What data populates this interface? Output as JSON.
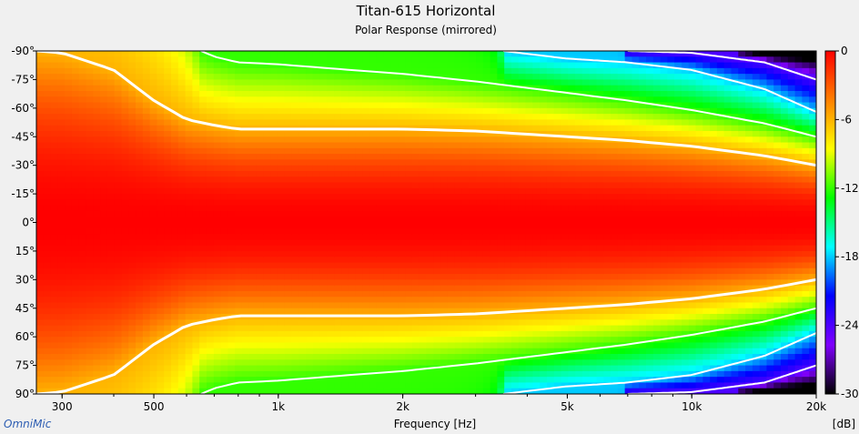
{
  "chart_data": {
    "type": "heatmap",
    "title": "Titan-615 Horizontal",
    "subtitle": "Polar Response (mirrored)",
    "xlabel": "Frequency [Hz]",
    "ylabel": "",
    "x_scale": "log",
    "xlim": [
      260,
      20000
    ],
    "x_ticks": [
      {
        "value": 300,
        "label": "300"
      },
      {
        "value": 500,
        "label": "500"
      },
      {
        "value": 1000,
        "label": "1k"
      },
      {
        "value": 2000,
        "label": "2k"
      },
      {
        "value": 5000,
        "label": "5k"
      },
      {
        "value": 10000,
        "label": "10k"
      },
      {
        "value": 20000,
        "label": "20k"
      }
    ],
    "ylim": [
      -90,
      90
    ],
    "y_ticks": [
      {
        "value": -90,
        "label": "-90°"
      },
      {
        "value": -75,
        "label": "-75°"
      },
      {
        "value": -60,
        "label": "-60°"
      },
      {
        "value": -45,
        "label": "-45°"
      },
      {
        "value": -30,
        "label": "-30°"
      },
      {
        "value": -15,
        "label": "-15°"
      },
      {
        "value": 0,
        "label": "0°"
      },
      {
        "value": 15,
        "label": "15°"
      },
      {
        "value": 30,
        "label": "30°"
      },
      {
        "value": 45,
        "label": "45°"
      },
      {
        "value": 60,
        "label": "60°"
      },
      {
        "value": 75,
        "label": "75°"
      },
      {
        "value": 90,
        "label": "90°"
      }
    ],
    "colorbar": {
      "label": "[dB]",
      "range": [
        -30,
        0
      ],
      "ticks": [
        {
          "value": 0,
          "label": "0"
        },
        {
          "value": -6,
          "label": "-6"
        },
        {
          "value": -12,
          "label": "-12"
        },
        {
          "value": -18,
          "label": "-18"
        },
        {
          "value": -24,
          "label": "-24"
        },
        {
          "value": -30,
          "label": "-30"
        }
      ],
      "stops": [
        "#ff0000",
        "#ff8000",
        "#ffff00",
        "#00ff00",
        "#00ffff",
        "#0000ff",
        "#8000ff",
        "#000000"
      ]
    },
    "contour_levels_db": [
      -6,
      -12,
      -18,
      -24
    ],
    "beamwidth_-6dB": {
      "freq": [
        260,
        300,
        400,
        500,
        600,
        700,
        800,
        1000,
        1500,
        2000,
        3000,
        5000,
        7000,
        10000,
        15000,
        20000
      ],
      "angle": [
        90,
        89,
        80,
        64,
        54,
        51,
        49,
        49,
        49,
        49,
        48,
        45,
        43,
        40,
        35,
        30
      ]
    },
    "beamwidth_-12dB": {
      "freq": [
        650,
        700,
        800,
        1000,
        1500,
        2000,
        3000,
        5000,
        7000,
        10000,
        15000,
        20000
      ],
      "angle": [
        90,
        87,
        84,
        83,
        80,
        78,
        74,
        68,
        64,
        59,
        52,
        45
      ]
    },
    "beamwidth_-18dB": {
      "freq": [
        3500,
        5000,
        7000,
        10000,
        15000,
        20000
      ],
      "angle": [
        90,
        86,
        84,
        80,
        70,
        58
      ]
    },
    "beamwidth_-24dB": {
      "freq": [
        7000,
        10000,
        15000,
        20000
      ],
      "angle": [
        90,
        89,
        84,
        75
      ]
    },
    "beamwidth_-30dB": {
      "freq": [
        13000,
        16000,
        20000
      ],
      "angle": [
        90,
        87,
        85
      ]
    }
  },
  "footer": {
    "brand": "OmniMic"
  },
  "colors": {
    "background": "#f0f0f0",
    "contour": "#ffffff"
  }
}
